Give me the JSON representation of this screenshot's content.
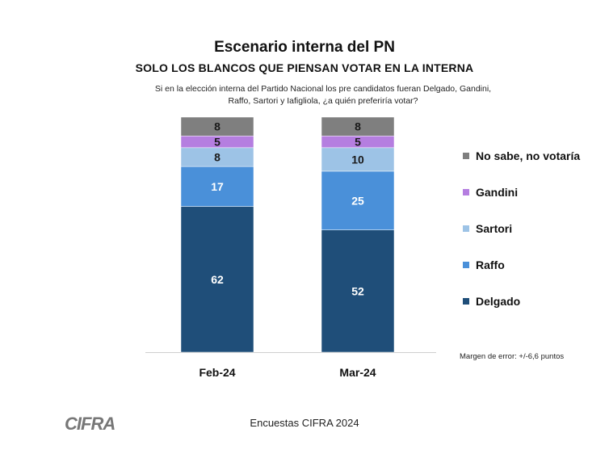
{
  "chart_data": {
    "type": "bar",
    "stacked": true,
    "title": "Escenario interna del PN",
    "subtitle": "SOLO LOS BLANCOS QUE PIENSAN VOTAR EN LA INTERNA",
    "question": "Si en la elección interna del Partido Nacional los pre candidatos fueran Delgado, Gandini, Raffo, Sartori y Iafigliola,  ¿a quién preferiría votar?",
    "categories": [
      "Feb-24",
      "Mar-24"
    ],
    "ylim": [
      0,
      100
    ],
    "legend_position": "right",
    "series": [
      {
        "name": "Delgado",
        "values": [
          62,
          52
        ],
        "color": "#1f4e79",
        "label_color": "#ffffff"
      },
      {
        "name": "Raffo",
        "values": [
          17,
          25
        ],
        "color": "#4a90d9",
        "label_color": "#ffffff"
      },
      {
        "name": "Sartori",
        "values": [
          8,
          10
        ],
        "color": "#9dc3e6",
        "label_color": "#1a1a1a"
      },
      {
        "name": "Gandini",
        "values": [
          5,
          5
        ],
        "color": "#b57ee0",
        "label_color": "#1a1a1a"
      },
      {
        "name": "No sabe, no votaría",
        "values": [
          8,
          8
        ],
        "color": "#7f7f7f",
        "label_color": "#1a1a1a"
      }
    ],
    "note": "Margen de error: +/-6,6 puntos"
  },
  "footer": {
    "source": "Encuestas CIFRA 2024",
    "logo_text": "CIFRA"
  }
}
